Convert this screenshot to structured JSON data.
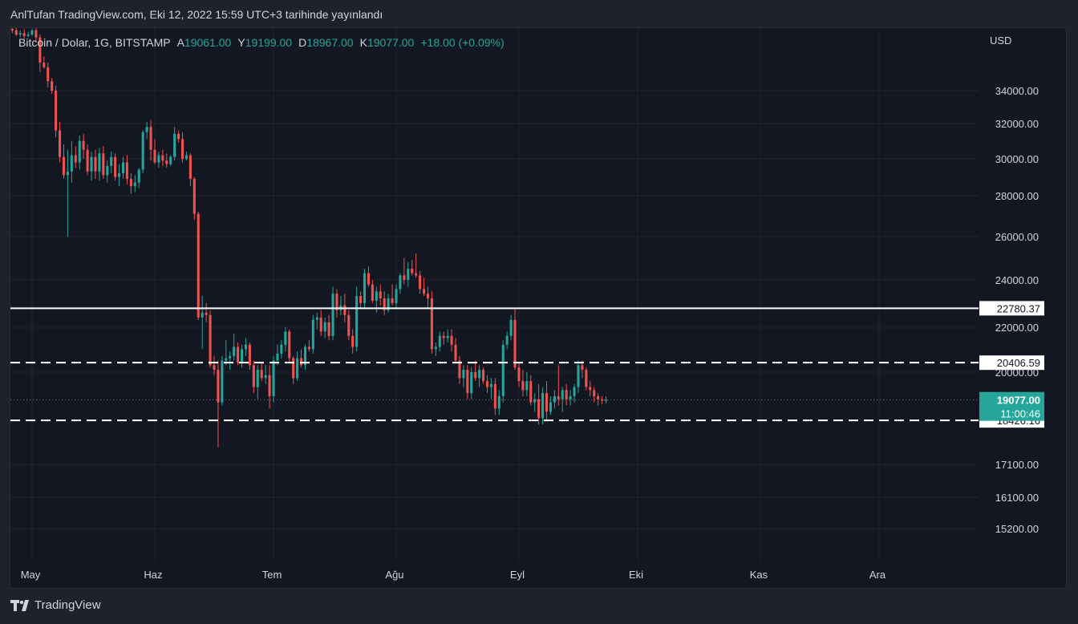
{
  "header": {
    "publish_text": "AnlTufan TradingView.com, Eki 12, 2022 15:59 UTC+3 tarihinde yayınlandı"
  },
  "legend": {
    "symbol": "Bitcoin / Dolar, 1G, BITSTAMP",
    "open_label": "A",
    "open_value": "19061.00",
    "high_label": "Y",
    "high_value": "19199.00",
    "low_label": "D",
    "low_value": "18967.00",
    "close_label": "K",
    "close_value": "19077.00",
    "change": "+18.00 (+0.09%)"
  },
  "footer": {
    "brand": "TradingView"
  },
  "colors": {
    "up": "#26a69a",
    "down": "#ef5350",
    "background": "#131722",
    "grid": "#1f2430",
    "text": "#d1d4dc",
    "price_line": "#26a69a",
    "level_line": "#ffffff"
  },
  "chart_data": {
    "type": "candlestick",
    "currency_label": "USD",
    "y_ticks": [
      "34000.00",
      "32000.00",
      "30000.00",
      "28000.00",
      "26000.00",
      "24000.00",
      "22000.00",
      "20000.00",
      "17100.00",
      "16100.00",
      "15200.00"
    ],
    "x_ticks": [
      {
        "label": "May",
        "date": "2022-05-01"
      },
      {
        "label": "Haz",
        "date": "2022-06-01"
      },
      {
        "label": "Tem",
        "date": "2022-07-01"
      },
      {
        "label": "Ağu",
        "date": "2022-08-01"
      },
      {
        "label": "Eyl",
        "date": "2022-09-01"
      },
      {
        "label": "Eki",
        "date": "2022-10-01"
      },
      {
        "label": "Kas",
        "date": "2022-11-01"
      },
      {
        "label": "Ara",
        "date": "2022-12-01"
      }
    ],
    "start_date": "2022-04-26",
    "candles": [
      [
        38100,
        38400,
        37800,
        38000
      ],
      [
        38000,
        38300,
        37600,
        37700
      ],
      [
        37700,
        38000,
        37500,
        37800
      ],
      [
        37800,
        38100,
        37400,
        37600
      ],
      [
        37600,
        37900,
        37500,
        37700
      ],
      [
        37700,
        38100,
        37600,
        38000
      ],
      [
        38000,
        38200,
        37200,
        37500
      ],
      [
        37500,
        37700,
        35200,
        35800
      ],
      [
        35800,
        36200,
        35400,
        35500
      ],
      [
        35500,
        35800,
        34200,
        34600
      ],
      [
        34600,
        34800,
        33800,
        34000
      ],
      [
        34000,
        34300,
        31200,
        31600
      ],
      [
        31600,
        32100,
        29800,
        30100
      ],
      [
        30100,
        30800,
        28900,
        29100
      ],
      [
        29100,
        30500,
        26000,
        29300
      ],
      [
        29300,
        31000,
        28700,
        30200
      ],
      [
        30200,
        30700,
        29500,
        29800
      ],
      [
        29800,
        31300,
        29400,
        31000
      ],
      [
        31000,
        31400,
        30000,
        30500
      ],
      [
        30500,
        30800,
        29100,
        29300
      ],
      [
        29300,
        30400,
        28800,
        30100
      ],
      [
        30100,
        30500,
        28900,
        29300
      ],
      [
        29300,
        30600,
        28800,
        30300
      ],
      [
        30300,
        30700,
        28900,
        29100
      ],
      [
        29100,
        29900,
        28700,
        29600
      ],
      [
        29600,
        30400,
        29200,
        30100
      ],
      [
        30100,
        30300,
        28800,
        29000
      ],
      [
        29000,
        29700,
        28500,
        29200
      ],
      [
        29200,
        30100,
        28900,
        29800
      ],
      [
        29800,
        30200,
        28600,
        28900
      ],
      [
        28900,
        29200,
        28100,
        28500
      ],
      [
        28500,
        29100,
        28200,
        28700
      ],
      [
        28700,
        29500,
        28400,
        29400
      ],
      [
        29400,
        31600,
        29200,
        31500
      ],
      [
        31500,
        32100,
        31100,
        31800
      ],
      [
        31800,
        32200,
        29900,
        30500
      ],
      [
        30500,
        31100,
        29700,
        29800
      ],
      [
        29800,
        30400,
        29500,
        30200
      ],
      [
        30200,
        30500,
        29600,
        29900
      ],
      [
        29900,
        30300,
        29500,
        29700
      ],
      [
        29700,
        30200,
        29600,
        30100
      ],
      [
        30100,
        31800,
        29900,
        31400
      ],
      [
        31400,
        31600,
        30900,
        31100
      ],
      [
        31100,
        31500,
        29800,
        30000
      ],
      [
        30000,
        30400,
        29900,
        30200
      ],
      [
        30200,
        30300,
        28500,
        28900
      ],
      [
        28900,
        29000,
        26800,
        27100
      ],
      [
        27100,
        27200,
        22300,
        22400
      ],
      [
        22400,
        23300,
        21000,
        22600
      ],
      [
        22600,
        23000,
        22200,
        22500
      ],
      [
        22500,
        22700,
        20200,
        20300
      ],
      [
        20300,
        20700,
        19900,
        20100
      ],
      [
        20100,
        20500,
        17600,
        19000
      ],
      [
        19000,
        20700,
        18900,
        20500
      ],
      [
        20500,
        21400,
        20300,
        20600
      ],
      [
        20600,
        20900,
        20100,
        20700
      ],
      [
        20700,
        21700,
        20500,
        21100
      ],
      [
        21100,
        21300,
        20300,
        20400
      ],
      [
        20400,
        21200,
        20200,
        21000
      ],
      [
        21000,
        21500,
        20700,
        21200
      ],
      [
        21200,
        21300,
        20100,
        20300
      ],
      [
        20300,
        20500,
        19300,
        19500
      ],
      [
        19500,
        20300,
        19100,
        20100
      ],
      [
        20100,
        20400,
        19700,
        19800
      ],
      [
        19800,
        20300,
        19600,
        19900
      ],
      [
        19900,
        20300,
        18800,
        19200
      ],
      [
        19200,
        20700,
        19000,
        20500
      ],
      [
        20500,
        21200,
        20300,
        20800
      ],
      [
        20800,
        21400,
        20600,
        21200
      ],
      [
        21200,
        22000,
        20900,
        21800
      ],
      [
        21800,
        21900,
        20400,
        20600
      ],
      [
        20600,
        20700,
        19600,
        19800
      ],
      [
        19800,
        20900,
        19700,
        20600
      ],
      [
        20600,
        21000,
        20200,
        20300
      ],
      [
        20300,
        21200,
        20100,
        21100
      ],
      [
        21100,
        21400,
        20900,
        21000
      ],
      [
        21000,
        22500,
        20800,
        22300
      ],
      [
        22300,
        22600,
        21900,
        22400
      ],
      [
        22400,
        22700,
        21600,
        21800
      ],
      [
        21800,
        22400,
        21500,
        22200
      ],
      [
        22200,
        22500,
        21400,
        21600
      ],
      [
        21600,
        23700,
        21400,
        23400
      ],
      [
        23400,
        23600,
        22400,
        22700
      ],
      [
        22700,
        23300,
        22500,
        22900
      ],
      [
        22900,
        23400,
        22200,
        22500
      ],
      [
        22500,
        22700,
        21400,
        21600
      ],
      [
        21600,
        21900,
        20800,
        21100
      ],
      [
        21100,
        23700,
        20900,
        23300
      ],
      [
        23300,
        23500,
        22800,
        23000
      ],
      [
        23000,
        24500,
        22800,
        24300
      ],
      [
        24300,
        24600,
        23700,
        23800
      ],
      [
        23800,
        24000,
        23000,
        23100
      ],
      [
        23100,
        23700,
        22600,
        23500
      ],
      [
        23500,
        23800,
        22900,
        23200
      ],
      [
        23200,
        23500,
        22500,
        22700
      ],
      [
        22700,
        23400,
        22600,
        23200
      ],
      [
        23200,
        23800,
        22900,
        23000
      ],
      [
        23000,
        23800,
        22800,
        23600
      ],
      [
        23600,
        24300,
        23400,
        24200
      ],
      [
        24200,
        25000,
        23800,
        24000
      ],
      [
        24000,
        24800,
        23700,
        24500
      ],
      [
        24500,
        24900,
        24200,
        24300
      ],
      [
        24300,
        25200,
        24100,
        24200
      ],
      [
        24200,
        24400,
        23400,
        23600
      ],
      [
        23600,
        24100,
        23300,
        23400
      ],
      [
        23400,
        23700,
        22800,
        23200
      ],
      [
        23200,
        23500,
        20800,
        21000
      ],
      [
        21000,
        21300,
        20700,
        21100
      ],
      [
        21100,
        21800,
        20900,
        21600
      ],
      [
        21600,
        21800,
        21200,
        21500
      ],
      [
        21500,
        21900,
        21300,
        21600
      ],
      [
        21600,
        21900,
        20900,
        21200
      ],
      [
        21200,
        21500,
        20400,
        20500
      ],
      [
        20500,
        20700,
        19600,
        19800
      ],
      [
        19800,
        20300,
        19500,
        20100
      ],
      [
        20100,
        20300,
        19100,
        19300
      ],
      [
        19300,
        20200,
        19100,
        20000
      ],
      [
        20000,
        20500,
        19700,
        19800
      ],
      [
        19800,
        20300,
        19500,
        20100
      ],
      [
        20100,
        20200,
        19600,
        19700
      ],
      [
        19700,
        19900,
        19300,
        19500
      ],
      [
        19500,
        19800,
        19100,
        19600
      ],
      [
        19600,
        19800,
        18600,
        18800
      ],
      [
        18800,
        19400,
        18600,
        19200
      ],
      [
        19200,
        21400,
        19000,
        21200
      ],
      [
        21200,
        21800,
        21000,
        21600
      ],
      [
        21600,
        22500,
        21400,
        22300
      ],
      [
        22300,
        22800,
        20100,
        20200
      ],
      [
        20200,
        20400,
        19500,
        19700
      ],
      [
        19700,
        20100,
        19200,
        19400
      ],
      [
        19400,
        20000,
        19200,
        19700
      ],
      [
        19700,
        19900,
        18900,
        19000
      ],
      [
        19000,
        19300,
        18700,
        19100
      ],
      [
        19100,
        19600,
        18300,
        18500
      ],
      [
        18500,
        19500,
        18300,
        19300
      ],
      [
        19300,
        19700,
        18400,
        18700
      ],
      [
        18700,
        19200,
        18600,
        19000
      ],
      [
        19000,
        19400,
        18800,
        19200
      ],
      [
        19200,
        20300,
        18900,
        19100
      ],
      [
        19100,
        19500,
        18700,
        19400
      ],
      [
        19400,
        19600,
        18900,
        19100
      ],
      [
        19100,
        19400,
        18900,
        19200
      ],
      [
        19200,
        19600,
        19000,
        19500
      ],
      [
        19500,
        20500,
        19300,
        20300
      ],
      [
        20300,
        20500,
        19800,
        20100
      ],
      [
        20100,
        20200,
        19400,
        19500
      ],
      [
        19500,
        19700,
        19200,
        19400
      ],
      [
        19400,
        19500,
        19000,
        19200
      ],
      [
        19200,
        19300,
        18900,
        19100
      ],
      [
        19100,
        19200,
        18950,
        19060
      ],
      [
        19061,
        19199,
        18967,
        19077
      ]
    ],
    "levels": [
      {
        "price": 22780.37,
        "label": "22780.37",
        "style": "solid"
      },
      {
        "price": 20406.59,
        "label": "20406.59",
        "style": "dashed"
      },
      {
        "price": 18426.16,
        "label": "18426.16",
        "style": "dashed"
      }
    ],
    "last_price": {
      "price": 19077.0,
      "label": "19077.00",
      "countdown": "11:00:46"
    }
  }
}
